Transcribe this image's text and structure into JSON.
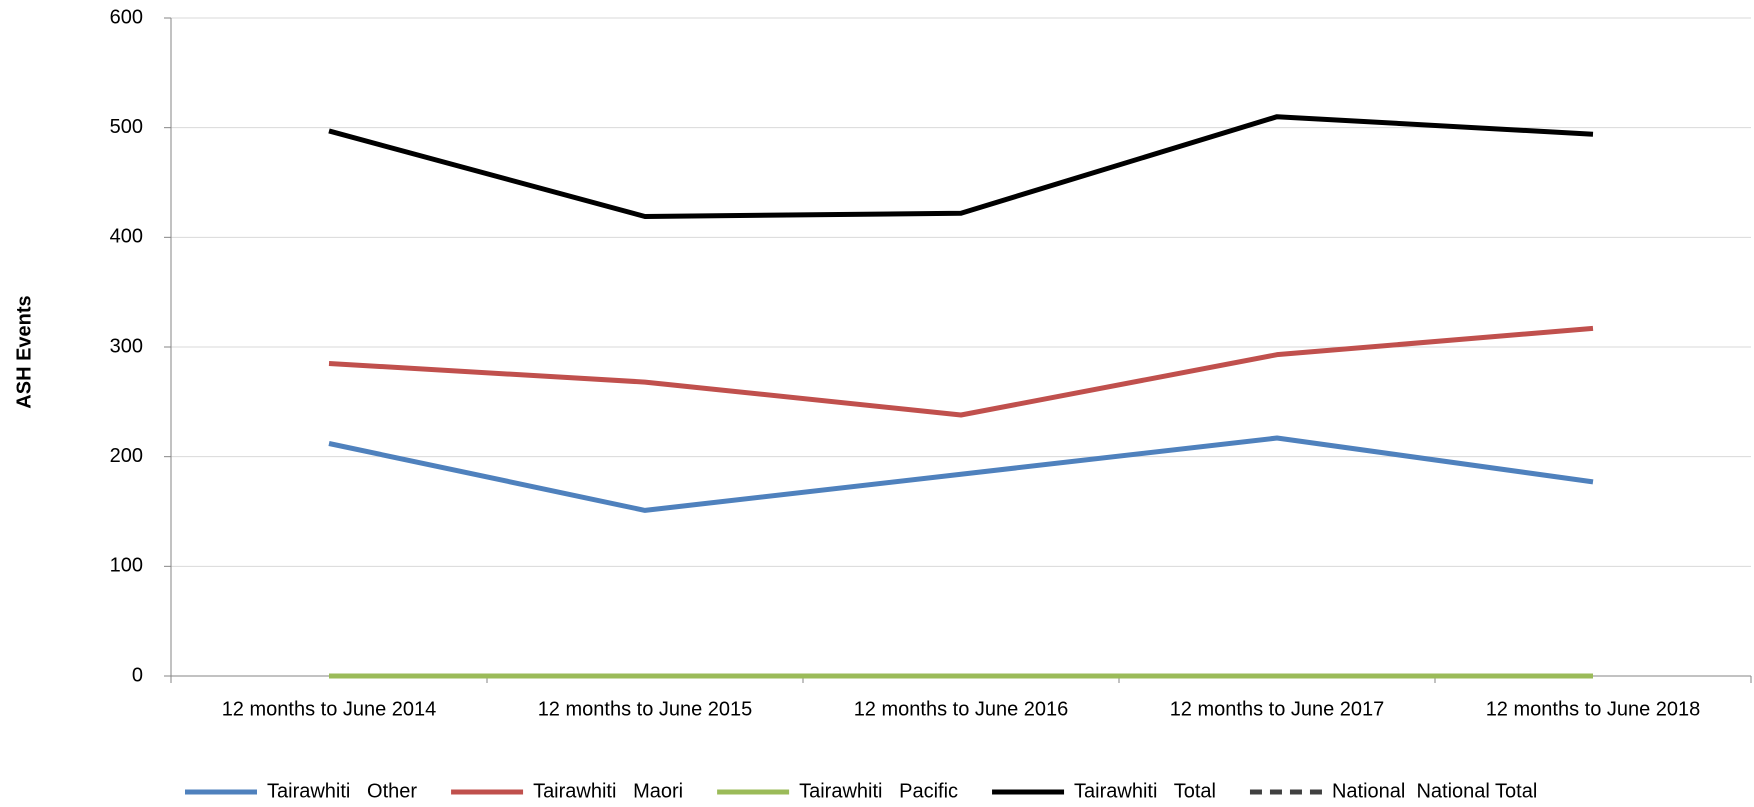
{
  "chart_data": {
    "type": "line",
    "y_label": "ASH Events",
    "categories": [
      "12 months to June 2014",
      "12 months to June 2015",
      "12 months to June 2016",
      "12 months to June 2017",
      "12 months to June 2018"
    ],
    "series": [
      {
        "name": "Tairawhiti   Other",
        "color": "#4f81bd",
        "values": [
          212,
          151,
          184,
          217,
          177
        ]
      },
      {
        "name": "Tairawhiti   Maori",
        "color": "#c0504d",
        "values": [
          285,
          268,
          238,
          293,
          317
        ]
      },
      {
        "name": "Tairawhiti   Pacific",
        "color": "#9bbb59",
        "values": [
          0,
          0,
          0,
          0,
          0
        ]
      },
      {
        "name": "Tairawhiti   Total",
        "color": "#000000",
        "values": [
          497,
          419,
          422,
          510,
          494
        ]
      },
      {
        "name": "National  National Total",
        "color": "#404040",
        "dashed": true,
        "values": [
          null,
          null,
          null,
          null,
          null
        ]
      }
    ],
    "ylim": [
      0,
      600
    ],
    "yticks": [
      0,
      100,
      200,
      300,
      400,
      500,
      600
    ],
    "grid": true,
    "legend": "bottom"
  }
}
